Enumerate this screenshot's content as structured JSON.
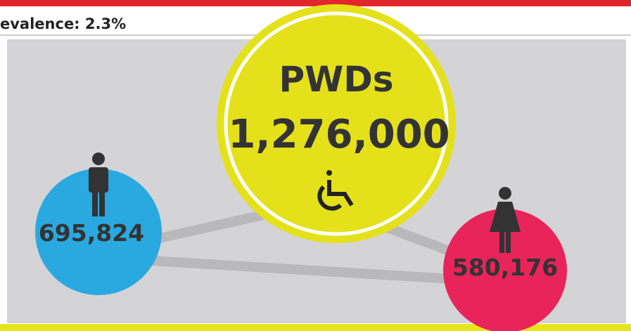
{
  "header": {
    "label": "evalence: 2.3%"
  },
  "total": {
    "title": "PWDs",
    "value": "1,276,000"
  },
  "male": {
    "value": "695,824"
  },
  "female": {
    "value": "580,176"
  }
}
